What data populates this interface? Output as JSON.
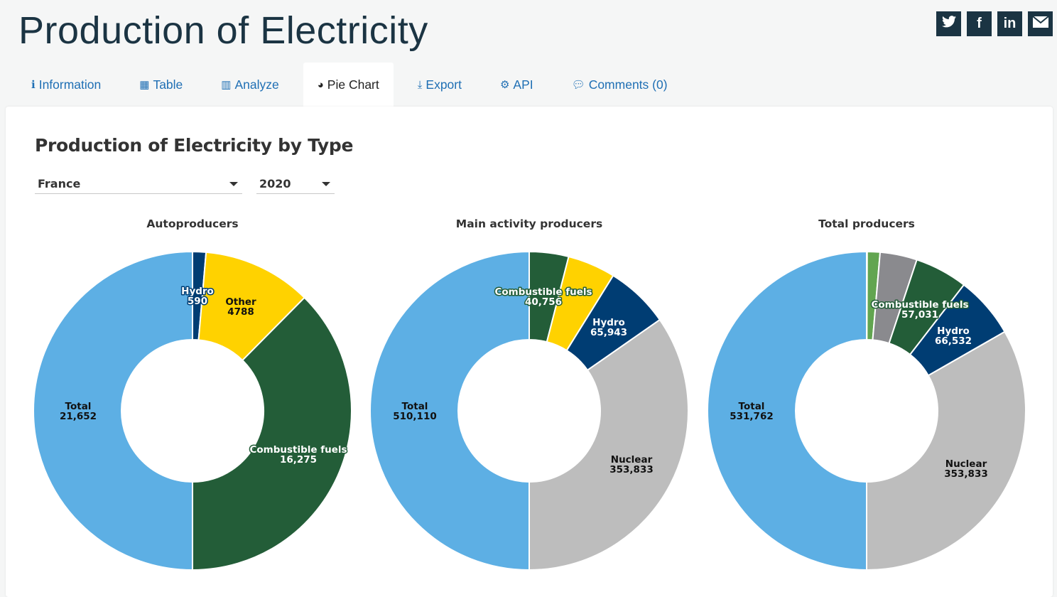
{
  "header": {
    "title": "Production of Electricity",
    "social": [
      {
        "name": "twitter",
        "glyph": "🐦︎"
      },
      {
        "name": "facebook",
        "glyph": "f"
      },
      {
        "name": "linkedin",
        "glyph": "in"
      },
      {
        "name": "email",
        "glyph": "✉"
      }
    ]
  },
  "tabs": [
    {
      "label": "Information",
      "icon": "info-icon",
      "glyph": "ℹ",
      "active": false
    },
    {
      "label": "Table",
      "icon": "table-icon",
      "glyph": "▦",
      "active": false
    },
    {
      "label": "Analyze",
      "icon": "bar-chart-icon",
      "glyph": "▥",
      "active": false
    },
    {
      "label": "Pie Chart",
      "icon": "dashboard-icon",
      "glyph": "◕",
      "active": true
    },
    {
      "label": "Export",
      "icon": "download-icon",
      "glyph": "⤓",
      "active": false
    },
    {
      "label": "API",
      "icon": "gears-icon",
      "glyph": "⚙",
      "active": false
    },
    {
      "label": "Comments (0)",
      "icon": "comments-icon",
      "glyph": "💬︎",
      "active": false
    }
  ],
  "filters": {
    "country": "France",
    "year": "2020"
  },
  "colors": {
    "total": "#5dafe4",
    "hydro": "#003d73",
    "other": "#ffd200",
    "combustible": "#235d38",
    "nuclear": "#bdbdbd",
    "gray": "#8a8a8e",
    "lightgreen": "#62a550"
  },
  "chart_data": {
    "type": "pie",
    "title": "Production of Electricity by Type",
    "charts": [
      {
        "title": "Autoproducers",
        "slices": [
          {
            "label": "Hydro",
            "value": 590,
            "display": "590",
            "color_key": "hydro",
            "text": "light",
            "labeled": true
          },
          {
            "label": "Other",
            "value": 4788,
            "display": "4788",
            "color_key": "other",
            "text": "dark",
            "labeled": true
          },
          {
            "label": "Combustible fuels",
            "value": 16275,
            "display": "16,275",
            "color_key": "combustible",
            "text": "light",
            "labeled": true
          },
          {
            "label": "Total",
            "value": 21652,
            "display": "21,652",
            "color_key": "total",
            "text": "dark",
            "labeled": true
          }
        ]
      },
      {
        "title": "Main activity producers",
        "slices": [
          {
            "label": "Combustible fuels",
            "value": 40756,
            "display": "40,756",
            "color_key": "combustible",
            "text": "light",
            "labeled": true
          },
          {
            "label": "",
            "value": 49578,
            "display": "",
            "color_key": "other",
            "text": "dark",
            "labeled": false
          },
          {
            "label": "Hydro",
            "value": 65943,
            "display": "65,943",
            "color_key": "hydro",
            "text": "light",
            "labeled": true
          },
          {
            "label": "Nuclear",
            "value": 353833,
            "display": "353,833",
            "color_key": "nuclear",
            "text": "dark",
            "labeled": true
          },
          {
            "label": "Total",
            "value": 510110,
            "display": "510,110",
            "color_key": "total",
            "text": "dark",
            "labeled": true
          }
        ]
      },
      {
        "title": "Total producers",
        "slices": [
          {
            "label": "",
            "value": 600,
            "display": "",
            "color_key": "other",
            "text": "dark",
            "labeled": false
          },
          {
            "label": "",
            "value": 13800,
            "display": "",
            "color_key": "lightgreen",
            "text": "dark",
            "labeled": false
          },
          {
            "label": "",
            "value": 39966,
            "display": "",
            "color_key": "gray",
            "text": "dark",
            "labeled": false
          },
          {
            "label": "Combustible fuels",
            "value": 57031,
            "display": "57,031",
            "color_key": "combustible",
            "text": "light",
            "labeled": true
          },
          {
            "label": "Hydro",
            "value": 66532,
            "display": "66,532",
            "color_key": "hydro",
            "text": "light",
            "labeled": true
          },
          {
            "label": "Nuclear",
            "value": 353833,
            "display": "353,833",
            "color_key": "nuclear",
            "text": "dark",
            "labeled": true
          },
          {
            "label": "Total",
            "value": 531762,
            "display": "531,762",
            "color_key": "total",
            "text": "dark",
            "labeled": true
          }
        ]
      }
    ]
  }
}
